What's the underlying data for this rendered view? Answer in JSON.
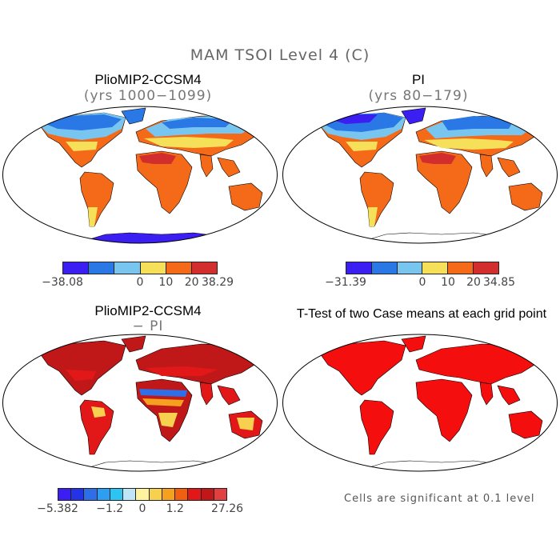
{
  "main_title": "MAM TSOI Level 4 (C)",
  "panels": {
    "tl": {
      "title": "PlioMIP2-CCSM4",
      "subtitle": "(yrs 1000−1099)"
    },
    "tr": {
      "title": "PI",
      "subtitle": "(yrs 80−179)"
    },
    "bl": {
      "title": "PlioMIP2-CCSM4",
      "subtitle": "− PI"
    },
    "br": {
      "title": "T-Test of two Case means at each grid point",
      "subtitle": ""
    }
  },
  "colorbars": {
    "tl": {
      "colors": [
        "#3b1ff2",
        "#2a78e6",
        "#78c6f0",
        "#f6e05a",
        "#f56a18",
        "#d22e2e"
      ],
      "labels": [
        "−38.08",
        "0",
        "10",
        "20",
        "38.29"
      ]
    },
    "tr": {
      "colors": [
        "#3b1ff2",
        "#2a78e6",
        "#78c6f0",
        "#f6e05a",
        "#f56a18",
        "#d22e2e"
      ],
      "labels": [
        "−31.39",
        "0",
        "10",
        "20",
        "34.85"
      ]
    },
    "bl": {
      "colors": [
        "#3b1ff2",
        "#2233e8",
        "#2e6fe8",
        "#2e9ef2",
        "#2ec4f2",
        "#bfe6f6",
        "#fff2a0",
        "#f8d050",
        "#f6a020",
        "#f06010",
        "#e21818",
        "#c01818",
        "#e04040"
      ],
      "labels": [
        "−5.382",
        "−1.2",
        "0",
        "1.2",
        "27.26"
      ]
    }
  },
  "note": "Cells are significant at 0.1 level",
  "colors": {
    "ttest_fill": "#f50e0e",
    "land_outline": "#000000"
  }
}
